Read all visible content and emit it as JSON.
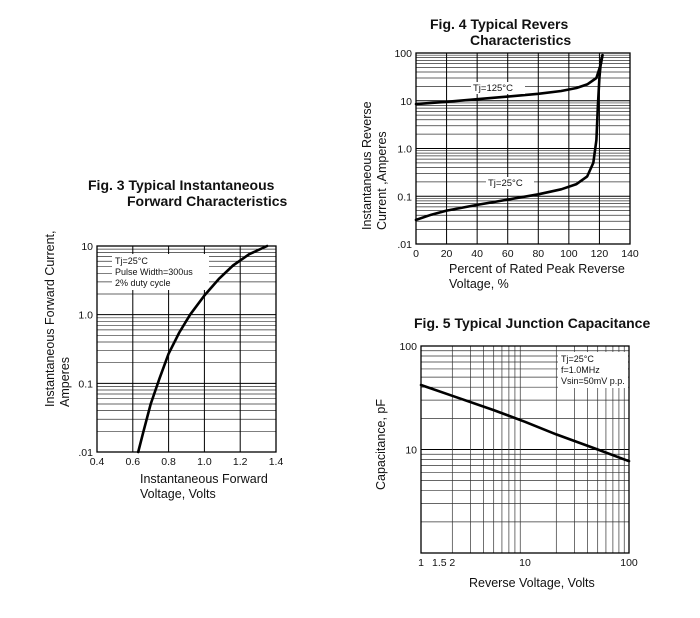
{
  "chart_data": [
    {
      "id": "fig3",
      "type": "line",
      "title_line1": "Fig. 3 Typical Instantaneous",
      "title_line2": "Forward Characteristics",
      "ylabel_line1": "Instantaneous Forward Current,",
      "ylabel_line2": "Amperes",
      "xlabel_line1": "Instantaneous Forward",
      "xlabel_line2": "Voltage, Volts",
      "x_scale": "linear",
      "y_scale": "log",
      "xlim": [
        0.4,
        1.4
      ],
      "ylim": [
        0.01,
        10
      ],
      "x_ticks": [
        0.4,
        0.6,
        0.8,
        1.0,
        1.2,
        1.4
      ],
      "x_tick_labels": [
        "0.4",
        "0.6",
        "0.8",
        "1.0",
        "1.2",
        "1.4"
      ],
      "y_ticks": [
        0.01,
        0.1,
        1,
        10
      ],
      "y_tick_labels": [
        ".01",
        "0.1",
        "1.0",
        "10"
      ],
      "notes": [
        "Tj=25°C",
        "Pulse Width=300us",
        "2% duty cycle"
      ],
      "grid": true,
      "series": [
        {
          "x": [
            0.63,
            0.66,
            0.7,
            0.75,
            0.8,
            0.86,
            0.92,
            1.0,
            1.08,
            1.16,
            1.25,
            1.35
          ],
          "y": [
            0.01,
            0.02,
            0.05,
            0.12,
            0.27,
            0.55,
            1.0,
            1.9,
            3.3,
            5.2,
            7.6,
            10
          ]
        }
      ]
    },
    {
      "id": "fig4",
      "type": "line",
      "title_line1": "Fig. 4 Typical Revers",
      "title_line2": "Characteristics",
      "ylabel_line1": "Instantaneous Reverse",
      "ylabel_line2": "Current ,Amperes",
      "xlabel_line1": "Percent of Rated Peak Reverse",
      "xlabel_line2": "Voltage, %",
      "x_scale": "linear",
      "y_scale": "log",
      "xlim": [
        0,
        140
      ],
      "ylim": [
        0.01,
        100
      ],
      "x_ticks": [
        0,
        20,
        40,
        60,
        80,
        100,
        120,
        140
      ],
      "x_tick_labels": [
        "0",
        "20",
        "40",
        "60",
        "80",
        "100",
        "120",
        "140"
      ],
      "y_ticks": [
        0.01,
        0.1,
        1,
        10,
        100
      ],
      "y_tick_labels": [
        ".01",
        "0.1",
        "1.0",
        "10",
        "100"
      ],
      "grid": true,
      "series": [
        {
          "name": "Tj=125°C",
          "x": [
            0,
            20,
            40,
            60,
            80,
            95,
            105,
            112,
            118,
            121,
            122
          ],
          "y": [
            8.5,
            9.5,
            10.8,
            12.2,
            14,
            16,
            18.5,
            22,
            30,
            60,
            90
          ]
        },
        {
          "name": "Tj=25°C",
          "x": [
            0,
            10,
            20,
            40,
            60,
            80,
            95,
            105,
            112,
            116,
            118,
            119,
            120,
            121,
            122
          ],
          "y": [
            0.032,
            0.041,
            0.05,
            0.066,
            0.085,
            0.11,
            0.14,
            0.18,
            0.26,
            0.5,
            1.5,
            8,
            30,
            70,
            90
          ]
        }
      ]
    },
    {
      "id": "fig5",
      "type": "line",
      "title": "Fig. 5 Typical Junction Capacitance",
      "ylabel": "Capacitance, pF",
      "xlabel": "Reverse Voltage, Volts",
      "x_scale": "log",
      "y_scale": "log",
      "xlim": [
        1,
        100
      ],
      "ylim": [
        1,
        100
      ],
      "x_ticks": [
        1,
        1.5,
        2,
        10,
        100
      ],
      "x_tick_labels": [
        "1",
        "1.5",
        "2",
        "10",
        "100"
      ],
      "y_ticks": [
        10,
        100
      ],
      "y_tick_labels": [
        "10",
        "100"
      ],
      "notes": [
        "Tj=25°C",
        "f=1.0MHz",
        "Vsin=50mV p.p."
      ],
      "grid": true,
      "series": [
        {
          "x": [
            1,
            2,
            5,
            10,
            20,
            50,
            100
          ],
          "y": [
            42,
            33,
            24,
            18.5,
            14,
            10,
            7.7
          ]
        }
      ]
    }
  ]
}
